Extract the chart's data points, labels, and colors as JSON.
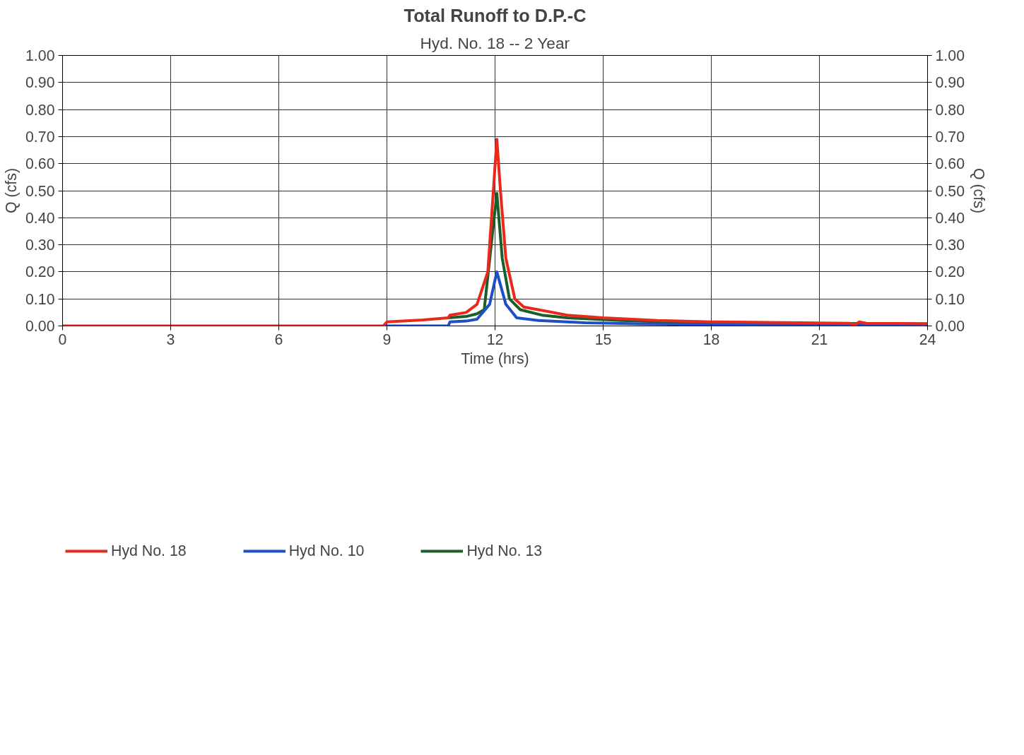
{
  "chart_data": {
    "type": "line",
    "title": "Total Runoff to D.P.-C",
    "subtitle": "Hyd. No. 18 -- 2 Year",
    "xlabel": "Time (hrs)",
    "ylabel": "Q (cfs)",
    "y2label": "Q (cfs)",
    "xlim": [
      0,
      24
    ],
    "xticks": [
      0,
      3,
      6,
      9,
      12,
      15,
      18,
      21,
      24
    ],
    "ylim": [
      0,
      1
    ],
    "yticks": [
      {
        "value": 0,
        "label": "0.00"
      },
      {
        "value": 0.1,
        "label": "0.10"
      },
      {
        "value": 0.2,
        "label": "0.20"
      },
      {
        "value": 0.3,
        "label": "0.30"
      },
      {
        "value": 0.4,
        "label": "0.40"
      },
      {
        "value": 0.5,
        "label": "0.50"
      },
      {
        "value": 0.6,
        "label": "0.60"
      },
      {
        "value": 0.7,
        "label": "0.70"
      },
      {
        "value": 0.8,
        "label": "0.80"
      },
      {
        "value": 0.9,
        "label": "0.90"
      },
      {
        "value": 1,
        "label": "1.00"
      }
    ],
    "y2lim": [
      0,
      1
    ],
    "y2ticks": [
      {
        "value": 0,
        "label": "0.00"
      },
      {
        "value": 0.1,
        "label": "0.10"
      },
      {
        "value": 0.2,
        "label": "0.20"
      },
      {
        "value": 0.3,
        "label": "0.30"
      },
      {
        "value": 0.4,
        "label": "0.40"
      },
      {
        "value": 0.5,
        "label": "0.50"
      },
      {
        "value": 0.6,
        "label": "0.60"
      },
      {
        "value": 0.7,
        "label": "0.70"
      },
      {
        "value": 0.8,
        "label": "0.80"
      },
      {
        "value": 0.9,
        "label": "0.90"
      },
      {
        "value": 1,
        "label": "1.00"
      }
    ],
    "grid": true,
    "legend": "bottom",
    "marker": "none",
    "line_style": "solid",
    "series": [
      {
        "name": "Hyd No. 18",
        "color": "#e8291c",
        "x": [
          0,
          8.9,
          9.0,
          10.0,
          10.7,
          10.75,
          11.2,
          11.5,
          11.8,
          12.05,
          12.15,
          12.3,
          12.55,
          12.8,
          13.2,
          14.0,
          15.0,
          16.5,
          18.0,
          21.8,
          22.0,
          22.1,
          22.3,
          24
        ],
        "values": [
          0,
          0,
          0.015,
          0.022,
          0.03,
          0.04,
          0.05,
          0.08,
          0.2,
          0.69,
          0.5,
          0.25,
          0.1,
          0.07,
          0.06,
          0.04,
          0.03,
          0.02,
          0.015,
          0.01,
          0.005,
          0.015,
          0.01,
          0.008
        ]
      },
      {
        "name": "Hyd No. 10",
        "color": "#1f4fc4",
        "x": [
          8.9,
          10.7,
          10.75,
          11.2,
          11.5,
          11.85,
          12.05,
          12.3,
          12.6,
          13.2,
          14.5,
          16.0,
          18.0,
          21.8,
          22.0,
          22.1,
          22.3,
          24
        ],
        "values": [
          0,
          0,
          0.015,
          0.018,
          0.025,
          0.08,
          0.2,
          0.08,
          0.03,
          0.02,
          0.012,
          0.008,
          0.005,
          0.004,
          0.001,
          0.006,
          0.003,
          0.003
        ]
      },
      {
        "name": "Hyd No. 13",
        "color": "#1a5e2a",
        "x": [
          10.7,
          11.2,
          11.5,
          11.7,
          12.05,
          12.2,
          12.4,
          12.7,
          13.3,
          14.0,
          15.5,
          18.0,
          24
        ],
        "values": [
          0.03,
          0.035,
          0.045,
          0.06,
          0.49,
          0.25,
          0.1,
          0.06,
          0.04,
          0.03,
          0.02,
          0.01,
          0.008
        ]
      }
    ]
  }
}
